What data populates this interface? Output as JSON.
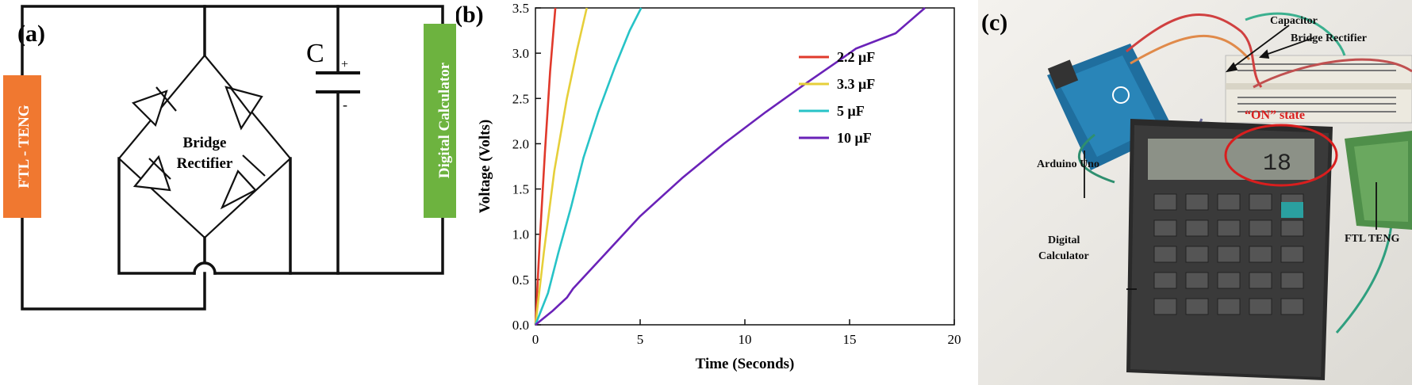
{
  "panels": {
    "a": {
      "label": "(a)",
      "teng_label": "FTL - TENG",
      "capacitor_label": "C",
      "plus_sign": "+",
      "minus_sign": "-",
      "bridge_label_1": "Bridge",
      "bridge_label_2": "Rectifier",
      "calculator_label": "Digital Calculator"
    },
    "b": {
      "label": "(b)"
    },
    "c": {
      "label": "(c)",
      "capacitor": "Capacitor",
      "bridge_rectifier": "Bridge Rectifier",
      "on_state": "“ON” state",
      "arduino": "Arduino Uno",
      "calc_line1": "Digital",
      "calc_line2": "Calculator",
      "ftl_teng": "FTL TENG",
      "display_value": "18"
    }
  },
  "colors": {
    "teng_box": "#f07830",
    "calc_box": "#6db33f",
    "photo_label": "#111111",
    "on_state": "#d91e1e"
  },
  "chart_data": {
    "type": "line",
    "xlabel": "Time (Seconds)",
    "ylabel": "Voltage (Volts)",
    "xlim": [
      0,
      20
    ],
    "ylim": [
      0,
      3.5
    ],
    "xticks": [
      "0",
      "5",
      "10",
      "15",
      "20"
    ],
    "yticks": [
      "0.0",
      "0.5",
      "1.0",
      "1.5",
      "2.0",
      "2.5",
      "3.0",
      "3.5"
    ],
    "grid": false,
    "legend_position": "center-right",
    "series": [
      {
        "name": "2.2 μF",
        "color": "#e0392b",
        "points": [
          [
            0,
            0
          ],
          [
            0.2,
            0.9
          ],
          [
            0.45,
            1.9
          ],
          [
            0.7,
            2.8
          ],
          [
            0.95,
            3.5
          ]
        ]
      },
      {
        "name": "3.3 μF",
        "color": "#e6cf3a",
        "points": [
          [
            0,
            0
          ],
          [
            0.4,
            0.8
          ],
          [
            0.9,
            1.7
          ],
          [
            1.5,
            2.5
          ],
          [
            2.0,
            3.05
          ],
          [
            2.45,
            3.5
          ]
        ]
      },
      {
        "name": "5 μF",
        "color": "#27c3c7",
        "points": [
          [
            0,
            0
          ],
          [
            0.6,
            0.35
          ],
          [
            1.1,
            0.8
          ],
          [
            1.7,
            1.3
          ],
          [
            2.3,
            1.85
          ],
          [
            3.0,
            2.35
          ],
          [
            3.8,
            2.85
          ],
          [
            4.5,
            3.25
          ],
          [
            5.05,
            3.5
          ]
        ]
      },
      {
        "name": "10 μF",
        "color": "#6a22b8",
        "points": [
          [
            0,
            0
          ],
          [
            0.8,
            0.15
          ],
          [
            1.5,
            0.3
          ],
          [
            1.8,
            0.4
          ],
          [
            3.0,
            0.7
          ],
          [
            5.0,
            1.2
          ],
          [
            7.0,
            1.62
          ],
          [
            9.0,
            2.0
          ],
          [
            11.0,
            2.35
          ],
          [
            13.0,
            2.68
          ],
          [
            14.5,
            2.92
          ],
          [
            15.3,
            3.05
          ],
          [
            17.2,
            3.22
          ],
          [
            18.6,
            3.5
          ]
        ]
      }
    ]
  }
}
